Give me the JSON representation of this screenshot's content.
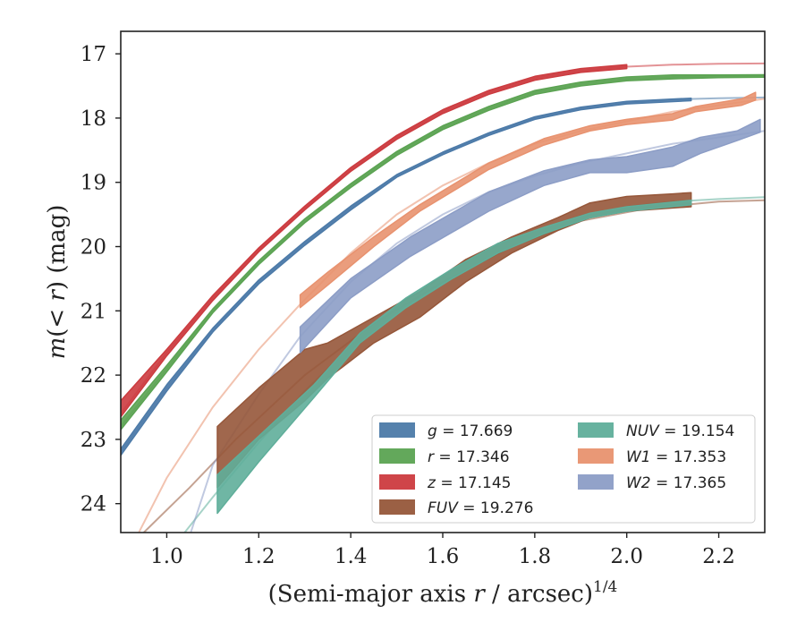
{
  "chart_data": {
    "type": "line",
    "xlabel": "(Semi-major axis r / arcsec)",
    "xlabel_parts": {
      "pre": "(Semi-major axis ",
      "var": "r",
      "post": " / arcsec)",
      "sup": "1/4"
    },
    "ylabel": "m(< r) (mag)",
    "ylabel_parts": {
      "pre": "m",
      "mid": "(< ",
      "var": "r",
      "post": ") (mag)"
    },
    "xlim": [
      0.9,
      2.3
    ],
    "ylim": [
      24.45,
      16.65
    ],
    "y_inverted": true,
    "xticks": [
      1.0,
      1.2,
      1.4,
      1.6,
      1.8,
      2.0,
      2.2
    ],
    "xtick_labels": [
      "1.0",
      "1.2",
      "1.4",
      "1.6",
      "1.8",
      "2.0",
      "2.2"
    ],
    "yticks": [
      17,
      18,
      19,
      20,
      21,
      22,
      23,
      24
    ],
    "ytick_labels": [
      "17",
      "18",
      "19",
      "20",
      "21",
      "22",
      "23",
      "24"
    ],
    "grid": false,
    "legend_placement": "lower-right",
    "series": [
      {
        "name": "g = 17.669",
        "band": "g",
        "total_mag": "17.669",
        "color": "#4c7aa8",
        "model": {
          "x": [
            0.9,
            1.0,
            1.1,
            1.2,
            1.3,
            1.4,
            1.5,
            1.6,
            1.7,
            1.8,
            1.9,
            2.0,
            2.1,
            2.2,
            2.3
          ],
          "y": [
            23.2,
            22.2,
            21.3,
            20.55,
            19.95,
            19.4,
            18.9,
            18.55,
            18.25,
            18.0,
            17.85,
            17.76,
            17.71,
            17.69,
            17.68
          ]
        },
        "data_x": [
          0.9,
          1.0,
          1.1,
          1.2,
          1.3,
          1.4,
          1.5,
          1.6,
          1.7,
          1.8,
          1.9,
          2.0,
          2.14
        ],
        "data_low": [
          23.25,
          22.25,
          21.33,
          20.58,
          19.98,
          19.43,
          18.92,
          18.57,
          18.27,
          18.02,
          17.87,
          17.78,
          17.73
        ],
        "data_high": [
          23.15,
          22.15,
          21.27,
          20.52,
          19.92,
          19.37,
          18.88,
          18.53,
          18.23,
          17.98,
          17.83,
          17.74,
          17.69
        ]
      },
      {
        "name": "r = 17.346",
        "band": "r",
        "total_mag": "17.346",
        "color": "#5ba352",
        "model": {
          "x": [
            0.9,
            1.0,
            1.1,
            1.2,
            1.3,
            1.4,
            1.5,
            1.6,
            1.7,
            1.8,
            1.9,
            2.0,
            2.1,
            2.2,
            2.3
          ],
          "y": [
            22.8,
            21.9,
            21.0,
            20.25,
            19.6,
            19.05,
            18.55,
            18.15,
            17.85,
            17.6,
            17.47,
            17.39,
            17.36,
            17.35,
            17.345
          ]
        },
        "data_x": [
          0.9,
          1.0,
          1.1,
          1.2,
          1.3,
          1.4,
          1.5,
          1.6,
          1.7,
          1.8,
          1.9,
          2.0,
          2.1,
          2.2,
          2.3
        ],
        "data_low": [
          22.85,
          21.95,
          21.03,
          20.28,
          19.63,
          19.08,
          18.58,
          18.18,
          17.88,
          17.63,
          17.5,
          17.42,
          17.39,
          17.37,
          17.365
        ],
        "data_high": [
          22.7,
          21.85,
          20.97,
          20.22,
          19.57,
          19.02,
          18.52,
          18.12,
          17.82,
          17.57,
          17.44,
          17.36,
          17.33,
          17.33,
          17.325
        ]
      },
      {
        "name": "z = 17.145",
        "band": "z",
        "total_mag": "17.145",
        "color": "#cc3b3f",
        "model": {
          "x": [
            0.9,
            1.0,
            1.1,
            1.2,
            1.3,
            1.4,
            1.5,
            1.6,
            1.7,
            1.8,
            1.9,
            2.0,
            2.1,
            2.2,
            2.3
          ],
          "y": [
            22.6,
            21.65,
            20.8,
            20.05,
            19.4,
            18.8,
            18.3,
            17.9,
            17.6,
            17.38,
            17.26,
            17.2,
            17.17,
            17.155,
            17.15
          ]
        },
        "data_x": [
          0.9,
          1.0,
          1.1,
          1.2,
          1.3,
          1.4,
          1.5,
          1.6,
          1.7,
          1.8,
          1.9,
          2.0
        ],
        "data_low": [
          22.65,
          21.7,
          20.84,
          20.08,
          19.43,
          18.83,
          18.33,
          17.93,
          17.63,
          17.41,
          17.29,
          17.23
        ],
        "data_high": [
          22.4,
          21.6,
          20.76,
          20.02,
          19.37,
          18.77,
          18.27,
          17.87,
          17.57,
          17.35,
          17.23,
          17.17
        ]
      },
      {
        "name": "FUV = 19.276",
        "band": "FUV",
        "total_mag": "19.276",
        "color": "#96573a",
        "model": {
          "x": [
            0.95,
            1.05,
            1.15,
            1.3,
            1.45,
            1.6,
            1.75,
            1.9,
            2.05,
            2.2,
            2.3
          ],
          "y": [
            24.45,
            23.75,
            23.0,
            22.0,
            21.2,
            20.55,
            20.0,
            19.6,
            19.4,
            19.3,
            19.28
          ]
        },
        "data_x": [
          1.11,
          1.2,
          1.3,
          1.35,
          1.45,
          1.55,
          1.65,
          1.75,
          1.85,
          1.92,
          2.0,
          2.1,
          2.14
        ],
        "data_low": [
          23.75,
          23.0,
          22.4,
          22.05,
          21.5,
          21.1,
          20.55,
          20.1,
          19.75,
          19.55,
          19.45,
          19.4,
          19.38
        ],
        "data_high": [
          22.8,
          22.2,
          21.6,
          21.5,
          21.1,
          20.7,
          20.2,
          19.85,
          19.55,
          19.32,
          19.22,
          19.18,
          19.16
        ]
      },
      {
        "name": "NUV = 19.154",
        "band": "NUV",
        "total_mag": "19.154",
        "color": "#5fae9a",
        "model": {
          "x": [
            1.0,
            1.1,
            1.2,
            1.3,
            1.4,
            1.5,
            1.6,
            1.7,
            1.8,
            1.9,
            2.0,
            2.1,
            2.2,
            2.3
          ],
          "y": [
            24.8,
            23.9,
            23.05,
            22.25,
            21.55,
            20.95,
            20.45,
            20.05,
            19.75,
            19.52,
            19.38,
            19.3,
            19.26,
            19.23
          ]
        },
        "data_x": [
          1.11,
          1.2,
          1.32,
          1.42,
          1.52,
          1.62,
          1.72,
          1.82,
          1.92,
          2.0,
          2.14
        ],
        "data_low": [
          24.15,
          23.35,
          22.35,
          21.5,
          20.95,
          20.5,
          20.1,
          19.8,
          19.55,
          19.45,
          19.35
        ],
        "data_high": [
          23.55,
          22.95,
          22.15,
          21.35,
          20.8,
          20.35,
          19.95,
          19.7,
          19.48,
          19.38,
          19.28
        ]
      },
      {
        "name": "W1 = 17.353",
        "band": "W1",
        "total_mag": "17.353",
        "color": "#e8926f",
        "model": {
          "x": [
            0.9,
            1.0,
            1.1,
            1.2,
            1.29,
            1.4,
            1.5,
            1.6,
            1.7,
            1.8,
            1.9,
            2.0,
            2.1,
            2.2,
            2.3
          ],
          "y": [
            25.0,
            23.6,
            22.5,
            21.6,
            20.9,
            20.1,
            19.5,
            19.05,
            18.7,
            18.4,
            18.2,
            18.05,
            17.9,
            17.8,
            17.7
          ]
        },
        "data_x": [
          1.29,
          1.35,
          1.45,
          1.55,
          1.7,
          1.82,
          1.92,
          2.0,
          2.1,
          2.15,
          2.25,
          2.28
        ],
        "data_low": [
          20.95,
          20.6,
          20.0,
          19.45,
          18.8,
          18.42,
          18.2,
          18.1,
          18.03,
          17.9,
          17.8,
          17.72
        ],
        "data_high": [
          20.75,
          20.4,
          19.85,
          19.35,
          18.7,
          18.32,
          18.12,
          18.02,
          17.93,
          17.82,
          17.7,
          17.6
        ]
      },
      {
        "name": "W2 = 17.365",
        "band": "W2",
        "total_mag": "17.365",
        "color": "#8c9dc6",
        "model": {
          "x": [
            1.05,
            1.1,
            1.2,
            1.29,
            1.4,
            1.5,
            1.6,
            1.7,
            1.8,
            1.9,
            2.0,
            2.1,
            2.2,
            2.3
          ],
          "y": [
            24.5,
            23.4,
            22.3,
            21.4,
            20.55,
            19.95,
            19.5,
            19.15,
            18.9,
            18.7,
            18.55,
            18.4,
            18.3,
            18.2
          ]
        },
        "data_x": [
          1.29,
          1.4,
          1.53,
          1.7,
          1.82,
          1.92,
          2.0,
          2.1,
          2.16,
          2.24,
          2.29
        ],
        "data_low": [
          21.65,
          20.8,
          20.15,
          19.45,
          19.05,
          18.85,
          18.85,
          18.75,
          18.55,
          18.35,
          18.22
        ],
        "data_high": [
          21.25,
          20.5,
          19.85,
          19.15,
          18.82,
          18.65,
          18.6,
          18.45,
          18.3,
          18.2,
          18.02
        ]
      }
    ],
    "legend_columns": [
      [
        "g",
        "r",
        "z",
        "FUV"
      ],
      [
        "NUV",
        "W1",
        "W2"
      ]
    ]
  }
}
